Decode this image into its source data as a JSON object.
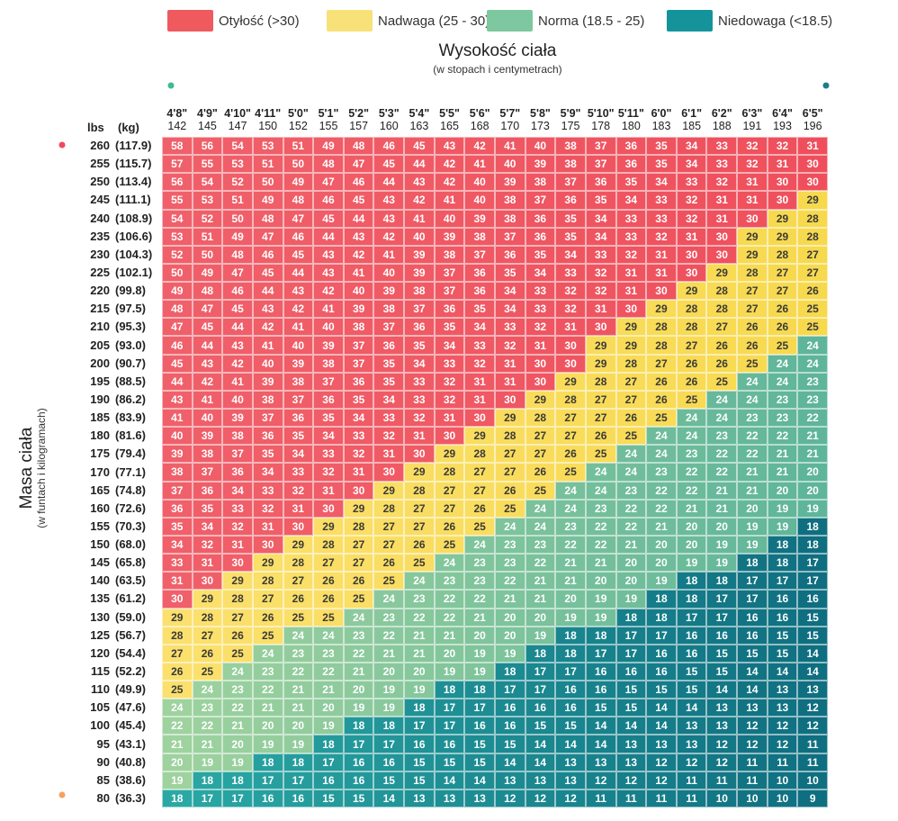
{
  "legend": [
    {
      "label": "Otyłość (>30)",
      "color": "#ef5a5f"
    },
    {
      "label": "Nadwaga (25 - 30)",
      "color": "#f9e17a"
    },
    {
      "label": "Norma (18.5 - 25)",
      "color": "#7ec8a0"
    },
    {
      "label": "Niedowaga (<18.5)",
      "color": "#14949a"
    }
  ],
  "x_axis": {
    "title": "Wysokość ciała",
    "subtitle": "(w stopach i centymetrach)"
  },
  "y_axis": {
    "title": "Masa ciała",
    "subtitle": "(w funtach i kilogramach)",
    "lbs_label": "lbs",
    "kg_label": "(kg)"
  },
  "chart_data": {
    "type": "heatmap",
    "title": "",
    "heights_ft": [
      "4'8\"",
      "4'9\"",
      "4'10\"",
      "4'11\"",
      "5'0\"",
      "5'1\"",
      "5'2\"",
      "5'3\"",
      "5'4\"",
      "5'5\"",
      "5'6\"",
      "5'7\"",
      "5'8\"",
      "5'9\"",
      "5'10\"",
      "5'11\"",
      "6'0\"",
      "6'1\"",
      "6'2\"",
      "6'3\"",
      "6'4\"",
      "6'5\""
    ],
    "heights_cm": [
      "142",
      "145",
      "147",
      "150",
      "152",
      "155",
      "157",
      "160",
      "163",
      "165",
      "168",
      "170",
      "173",
      "175",
      "178",
      "180",
      "183",
      "185",
      "188",
      "191",
      "193",
      "196"
    ],
    "weights_lbs": [
      "260",
      "255",
      "250",
      "245",
      "240",
      "235",
      "230",
      "225",
      "220",
      "215",
      "210",
      "205",
      "200",
      "195",
      "190",
      "185",
      "180",
      "175",
      "170",
      "165",
      "160",
      "155",
      "150",
      "145",
      "140",
      "135",
      "130",
      "125",
      "120",
      "115",
      "110",
      "105",
      "100",
      "95",
      "90",
      "85",
      "80"
    ],
    "weights_kg": [
      "(117.9)",
      "(115.7)",
      "(113.4)",
      "(111.1)",
      "(108.9)",
      "(106.6)",
      "(104.3)",
      "(102.1)",
      "(99.8)",
      "(97.5)",
      "(95.3)",
      "(93.0)",
      "(90.7)",
      "(88.5)",
      "(86.2)",
      "(83.9)",
      "(81.6)",
      "(79.4)",
      "(77.1)",
      "(74.8)",
      "(72.6)",
      "(70.3)",
      "(68.0)",
      "(65.8)",
      "(63.5)",
      "(61.2)",
      "(59.0)",
      "(56.7)",
      "(54.4)",
      "(52.2)",
      "(49.9)",
      "(47.6)",
      "(45.4)",
      "(43.1)",
      "(40.8)",
      "(38.6)",
      "(36.3)"
    ],
    "values": [
      [
        58,
        56,
        54,
        53,
        51,
        49,
        48,
        46,
        45,
        43,
        42,
        41,
        40,
        38,
        37,
        36,
        35,
        34,
        33,
        32,
        32,
        31
      ],
      [
        57,
        55,
        53,
        51,
        50,
        48,
        47,
        45,
        44,
        42,
        41,
        40,
        39,
        38,
        37,
        36,
        35,
        34,
        33,
        32,
        31,
        30
      ],
      [
        56,
        54,
        52,
        50,
        49,
        47,
        46,
        44,
        43,
        42,
        40,
        39,
        38,
        37,
        36,
        35,
        34,
        33,
        32,
        31,
        30,
        30
      ],
      [
        55,
        53,
        51,
        49,
        48,
        46,
        45,
        43,
        42,
        41,
        40,
        38,
        37,
        36,
        35,
        34,
        33,
        32,
        31,
        31,
        30,
        29
      ],
      [
        54,
        52,
        50,
        48,
        47,
        45,
        44,
        43,
        41,
        40,
        39,
        38,
        36,
        35,
        34,
        33,
        33,
        32,
        31,
        30,
        29,
        28
      ],
      [
        53,
        51,
        49,
        47,
        46,
        44,
        43,
        42,
        40,
        39,
        38,
        37,
        36,
        35,
        34,
        33,
        32,
        31,
        30,
        29,
        29,
        28
      ],
      [
        52,
        50,
        48,
        46,
        45,
        43,
        42,
        41,
        39,
        38,
        37,
        36,
        35,
        34,
        33,
        32,
        31,
        30,
        30,
        29,
        28,
        27
      ],
      [
        50,
        49,
        47,
        45,
        44,
        43,
        41,
        40,
        39,
        37,
        36,
        35,
        34,
        33,
        32,
        31,
        31,
        30,
        29,
        28,
        27,
        27
      ],
      [
        49,
        48,
        46,
        44,
        43,
        42,
        40,
        39,
        38,
        37,
        36,
        34,
        33,
        32,
        32,
        31,
        30,
        29,
        28,
        27,
        27,
        26
      ],
      [
        48,
        47,
        45,
        43,
        42,
        41,
        39,
        38,
        37,
        36,
        35,
        34,
        33,
        32,
        31,
        30,
        29,
        28,
        28,
        27,
        26,
        25
      ],
      [
        47,
        45,
        44,
        42,
        41,
        40,
        38,
        37,
        36,
        35,
        34,
        33,
        32,
        31,
        30,
        29,
        28,
        28,
        27,
        26,
        26,
        25
      ],
      [
        46,
        44,
        43,
        41,
        40,
        39,
        37,
        36,
        35,
        34,
        33,
        32,
        31,
        30,
        29,
        29,
        28,
        27,
        26,
        26,
        25,
        24
      ],
      [
        45,
        43,
        42,
        40,
        39,
        38,
        37,
        35,
        34,
        33,
        32,
        31,
        30,
        30,
        29,
        28,
        27,
        26,
        26,
        25,
        24,
        24
      ],
      [
        44,
        42,
        41,
        39,
        38,
        37,
        36,
        35,
        33,
        32,
        31,
        31,
        30,
        29,
        28,
        27,
        26,
        26,
        25,
        24,
        24,
        23
      ],
      [
        43,
        41,
        40,
        38,
        37,
        36,
        35,
        34,
        33,
        32,
        31,
        30,
        29,
        28,
        27,
        27,
        26,
        25,
        24,
        24,
        23,
        23
      ],
      [
        41,
        40,
        39,
        37,
        36,
        35,
        34,
        33,
        32,
        31,
        30,
        29,
        28,
        27,
        27,
        26,
        25,
        24,
        24,
        23,
        23,
        22
      ],
      [
        40,
        39,
        38,
        36,
        35,
        34,
        33,
        32,
        31,
        30,
        29,
        28,
        27,
        27,
        26,
        25,
        24,
        24,
        23,
        22,
        22,
        21
      ],
      [
        39,
        38,
        37,
        35,
        34,
        33,
        32,
        31,
        30,
        29,
        28,
        27,
        27,
        26,
        25,
        24,
        24,
        23,
        22,
        22,
        21,
        21
      ],
      [
        38,
        37,
        36,
        34,
        33,
        32,
        31,
        30,
        29,
        28,
        27,
        27,
        26,
        25,
        24,
        24,
        23,
        22,
        22,
        21,
        21,
        20
      ],
      [
        37,
        36,
        34,
        33,
        32,
        31,
        30,
        29,
        28,
        27,
        27,
        26,
        25,
        24,
        24,
        23,
        22,
        22,
        21,
        21,
        20,
        20
      ],
      [
        36,
        35,
        33,
        32,
        31,
        30,
        29,
        28,
        27,
        27,
        26,
        25,
        24,
        24,
        23,
        22,
        22,
        21,
        21,
        20,
        19,
        19
      ],
      [
        35,
        34,
        32,
        31,
        30,
        29,
        28,
        27,
        27,
        26,
        25,
        24,
        24,
        23,
        22,
        22,
        21,
        20,
        20,
        19,
        19,
        18
      ],
      [
        34,
        32,
        31,
        30,
        29,
        28,
        27,
        27,
        26,
        25,
        24,
        23,
        23,
        22,
        22,
        21,
        20,
        20,
        19,
        19,
        18,
        18
      ],
      [
        33,
        31,
        30,
        29,
        28,
        27,
        27,
        26,
        25,
        24,
        23,
        23,
        22,
        21,
        21,
        20,
        20,
        19,
        19,
        18,
        18,
        17
      ],
      [
        31,
        30,
        29,
        28,
        27,
        26,
        26,
        25,
        24,
        23,
        23,
        22,
        21,
        21,
        20,
        20,
        19,
        18,
        18,
        17,
        17,
        17
      ],
      [
        30,
        29,
        28,
        27,
        26,
        26,
        25,
        24,
        23,
        22,
        22,
        21,
        21,
        20,
        19,
        19,
        18,
        18,
        17,
        17,
        16,
        16
      ],
      [
        29,
        28,
        27,
        26,
        25,
        25,
        24,
        23,
        22,
        22,
        21,
        20,
        20,
        19,
        19,
        18,
        18,
        17,
        17,
        16,
        16,
        15
      ],
      [
        28,
        27,
        26,
        25,
        24,
        24,
        23,
        22,
        21,
        21,
        20,
        20,
        19,
        18,
        18,
        17,
        17,
        16,
        16,
        16,
        15,
        15
      ],
      [
        27,
        26,
        25,
        24,
        23,
        23,
        22,
        21,
        21,
        20,
        19,
        19,
        18,
        18,
        17,
        17,
        16,
        16,
        15,
        15,
        15,
        14
      ],
      [
        26,
        25,
        24,
        23,
        22,
        22,
        21,
        20,
        20,
        19,
        19,
        18,
        17,
        17,
        16,
        16,
        16,
        15,
        15,
        14,
        14,
        14
      ],
      [
        25,
        24,
        23,
        22,
        21,
        21,
        20,
        19,
        19,
        18,
        18,
        17,
        17,
        16,
        16,
        15,
        15,
        15,
        14,
        14,
        13,
        13
      ],
      [
        24,
        23,
        22,
        21,
        21,
        20,
        19,
        19,
        18,
        17,
        17,
        16,
        16,
        16,
        15,
        15,
        14,
        14,
        13,
        13,
        13,
        12
      ],
      [
        22,
        22,
        21,
        20,
        20,
        19,
        18,
        18,
        17,
        17,
        16,
        16,
        15,
        15,
        14,
        14,
        14,
        13,
        13,
        12,
        12,
        12
      ],
      [
        21,
        21,
        20,
        19,
        19,
        18,
        17,
        17,
        16,
        16,
        15,
        15,
        14,
        14,
        14,
        13,
        13,
        13,
        12,
        12,
        12,
        11
      ],
      [
        20,
        19,
        19,
        18,
        18,
        17,
        16,
        16,
        15,
        15,
        15,
        14,
        14,
        13,
        13,
        13,
        12,
        12,
        12,
        11,
        11,
        11
      ],
      [
        19,
        18,
        18,
        17,
        17,
        16,
        16,
        15,
        15,
        14,
        14,
        13,
        13,
        13,
        12,
        12,
        12,
        11,
        11,
        11,
        10,
        10
      ],
      [
        18,
        17,
        17,
        16,
        16,
        15,
        15,
        14,
        13,
        13,
        13,
        12,
        12,
        12,
        11,
        11,
        11,
        11,
        10,
        10,
        10,
        9
      ]
    ]
  }
}
